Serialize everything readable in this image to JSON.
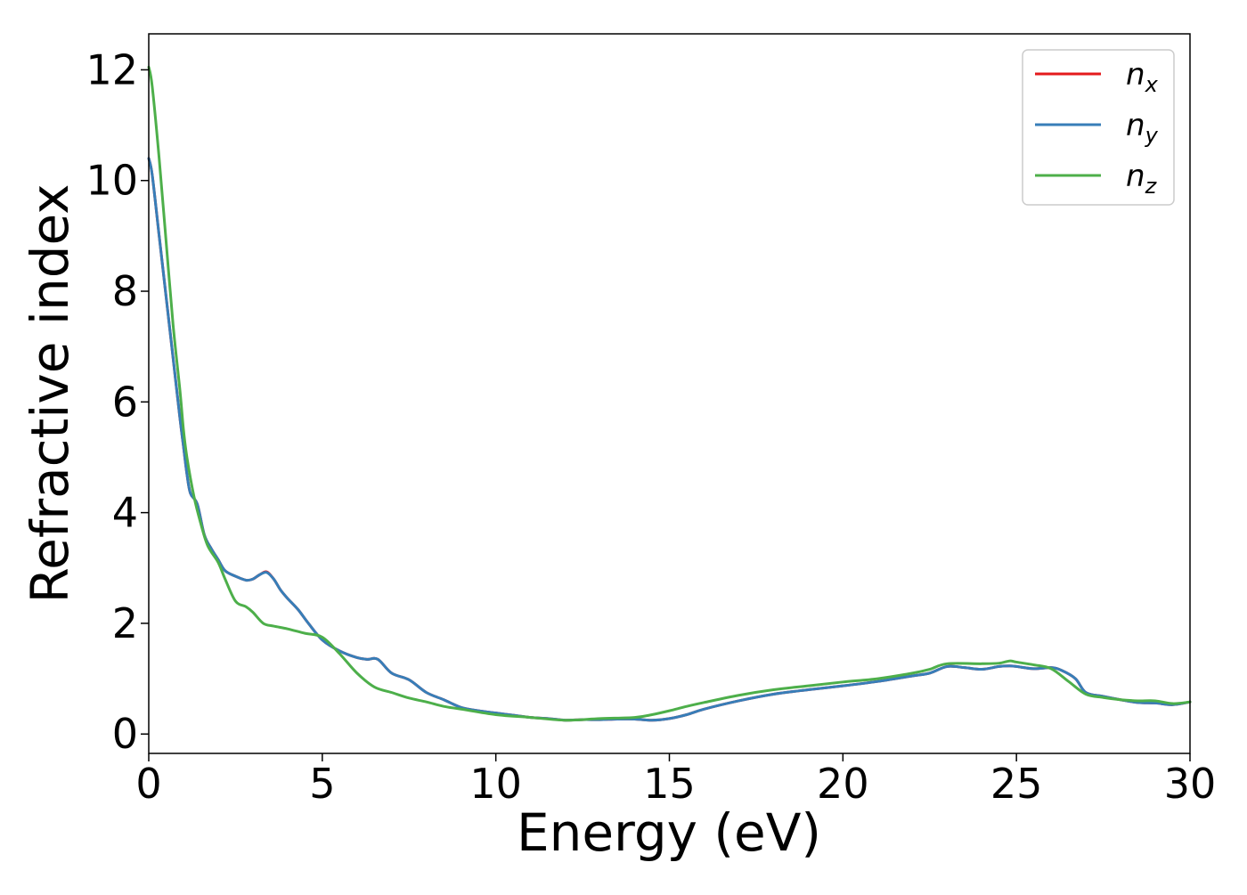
{
  "chart_data": {
    "type": "line",
    "title": "",
    "xlabel": "Energy (eV)",
    "ylabel": "Refractive index",
    "xlim": [
      0,
      30
    ],
    "ylim": [
      -0.35,
      12.65
    ],
    "xticks": [
      0,
      5,
      10,
      15,
      20,
      25,
      30
    ],
    "yticks": [
      0,
      2,
      4,
      6,
      8,
      10,
      12
    ],
    "grid": false,
    "legend_position": "top-right",
    "series": [
      {
        "name": "n",
        "subscript": "x",
        "color": "#e41a1c",
        "x": [
          0,
          0.1,
          0.3,
          0.5,
          0.7,
          0.9,
          1.0,
          1.1,
          1.2,
          1.4,
          1.6,
          1.8,
          2.0,
          2.2,
          2.5,
          2.8,
          3.0,
          3.2,
          3.4,
          3.6,
          3.8,
          4.0,
          4.3,
          4.6,
          5.0,
          5.5,
          6.0,
          6.3,
          6.6,
          7.0,
          7.5,
          8.0,
          8.5,
          9.0,
          9.5,
          10.0,
          10.5,
          11.0,
          11.5,
          12.0,
          12.5,
          13.0,
          13.5,
          14.0,
          14.5,
          15.0,
          15.5,
          16.0,
          17.0,
          18.0,
          19.0,
          20.0,
          21.0,
          22.0,
          22.5,
          23.0,
          23.5,
          24.0,
          24.5,
          24.8,
          25.0,
          25.5,
          26.0,
          26.3,
          26.7,
          27.0,
          27.5,
          28.0,
          28.5,
          29.0,
          29.5,
          30.0
        ],
        "values": [
          10.4,
          10.1,
          9.0,
          7.9,
          6.8,
          5.7,
          5.2,
          4.7,
          4.35,
          4.15,
          3.6,
          3.35,
          3.15,
          2.95,
          2.85,
          2.78,
          2.8,
          2.88,
          2.93,
          2.8,
          2.6,
          2.45,
          2.25,
          2.0,
          1.7,
          1.5,
          1.38,
          1.35,
          1.35,
          1.1,
          0.98,
          0.75,
          0.62,
          0.48,
          0.42,
          0.38,
          0.34,
          0.3,
          0.28,
          0.25,
          0.26,
          0.26,
          0.27,
          0.27,
          0.25,
          0.28,
          0.35,
          0.45,
          0.6,
          0.72,
          0.8,
          0.87,
          0.95,
          1.05,
          1.1,
          1.22,
          1.2,
          1.17,
          1.22,
          1.23,
          1.22,
          1.18,
          1.2,
          1.15,
          1.0,
          0.75,
          0.68,
          0.62,
          0.57,
          0.56,
          0.53,
          0.58
        ]
      },
      {
        "name": "n",
        "subscript": "y",
        "color": "#377eb8",
        "x": [
          0,
          0.1,
          0.3,
          0.5,
          0.7,
          0.9,
          1.0,
          1.1,
          1.2,
          1.4,
          1.6,
          1.8,
          2.0,
          2.2,
          2.5,
          2.8,
          3.0,
          3.2,
          3.4,
          3.6,
          3.8,
          4.0,
          4.3,
          4.6,
          5.0,
          5.5,
          6.0,
          6.3,
          6.6,
          7.0,
          7.5,
          8.0,
          8.5,
          9.0,
          9.5,
          10.0,
          10.5,
          11.0,
          11.5,
          12.0,
          12.5,
          13.0,
          13.5,
          14.0,
          14.5,
          15.0,
          15.5,
          16.0,
          17.0,
          18.0,
          19.0,
          20.0,
          21.0,
          22.0,
          22.5,
          23.0,
          23.5,
          24.0,
          24.5,
          24.8,
          25.0,
          25.5,
          26.0,
          26.3,
          26.7,
          27.0,
          27.5,
          28.0,
          28.5,
          29.0,
          29.5,
          30.0
        ],
        "values": [
          10.4,
          10.1,
          9.0,
          7.9,
          6.8,
          5.7,
          5.2,
          4.7,
          4.35,
          4.15,
          3.6,
          3.35,
          3.15,
          2.95,
          2.85,
          2.78,
          2.8,
          2.88,
          2.92,
          2.8,
          2.6,
          2.45,
          2.25,
          2.0,
          1.7,
          1.5,
          1.38,
          1.35,
          1.35,
          1.1,
          0.98,
          0.75,
          0.62,
          0.48,
          0.42,
          0.38,
          0.34,
          0.3,
          0.28,
          0.25,
          0.26,
          0.26,
          0.27,
          0.27,
          0.25,
          0.28,
          0.35,
          0.45,
          0.6,
          0.72,
          0.8,
          0.87,
          0.95,
          1.05,
          1.1,
          1.22,
          1.2,
          1.17,
          1.22,
          1.23,
          1.22,
          1.18,
          1.2,
          1.15,
          1.0,
          0.75,
          0.68,
          0.62,
          0.57,
          0.56,
          0.53,
          0.58
        ]
      },
      {
        "name": "n",
        "subscript": "z",
        "color": "#4daf4a",
        "x": [
          0,
          0.1,
          0.3,
          0.5,
          0.7,
          0.9,
          1.0,
          1.1,
          1.3,
          1.5,
          1.7,
          2.0,
          2.2,
          2.5,
          2.8,
          3.0,
          3.3,
          3.6,
          4.0,
          4.5,
          5.0,
          5.5,
          6.0,
          6.5,
          7.0,
          7.5,
          8.0,
          8.5,
          9.0,
          10.0,
          11.0,
          12.0,
          13.0,
          14.0,
          14.5,
          15.0,
          15.5,
          16.0,
          17.0,
          18.0,
          19.0,
          20.0,
          21.0,
          22.0,
          22.5,
          23.0,
          24.0,
          24.5,
          24.8,
          25.0,
          25.5,
          26.0,
          26.5,
          27.0,
          27.5,
          28.0,
          28.5,
          29.0,
          29.5,
          30.0
        ],
        "values": [
          12.05,
          11.7,
          10.4,
          8.9,
          7.4,
          6.2,
          5.5,
          5.0,
          4.3,
          3.8,
          3.4,
          3.1,
          2.8,
          2.4,
          2.3,
          2.2,
          2.0,
          1.95,
          1.9,
          1.82,
          1.75,
          1.45,
          1.1,
          0.85,
          0.75,
          0.65,
          0.58,
          0.5,
          0.45,
          0.35,
          0.3,
          0.25,
          0.28,
          0.3,
          0.35,
          0.42,
          0.5,
          0.57,
          0.7,
          0.8,
          0.87,
          0.94,
          1.0,
          1.1,
          1.17,
          1.27,
          1.27,
          1.28,
          1.32,
          1.3,
          1.25,
          1.18,
          0.95,
          0.72,
          0.66,
          0.62,
          0.6,
          0.6,
          0.55,
          0.58
        ]
      }
    ]
  }
}
